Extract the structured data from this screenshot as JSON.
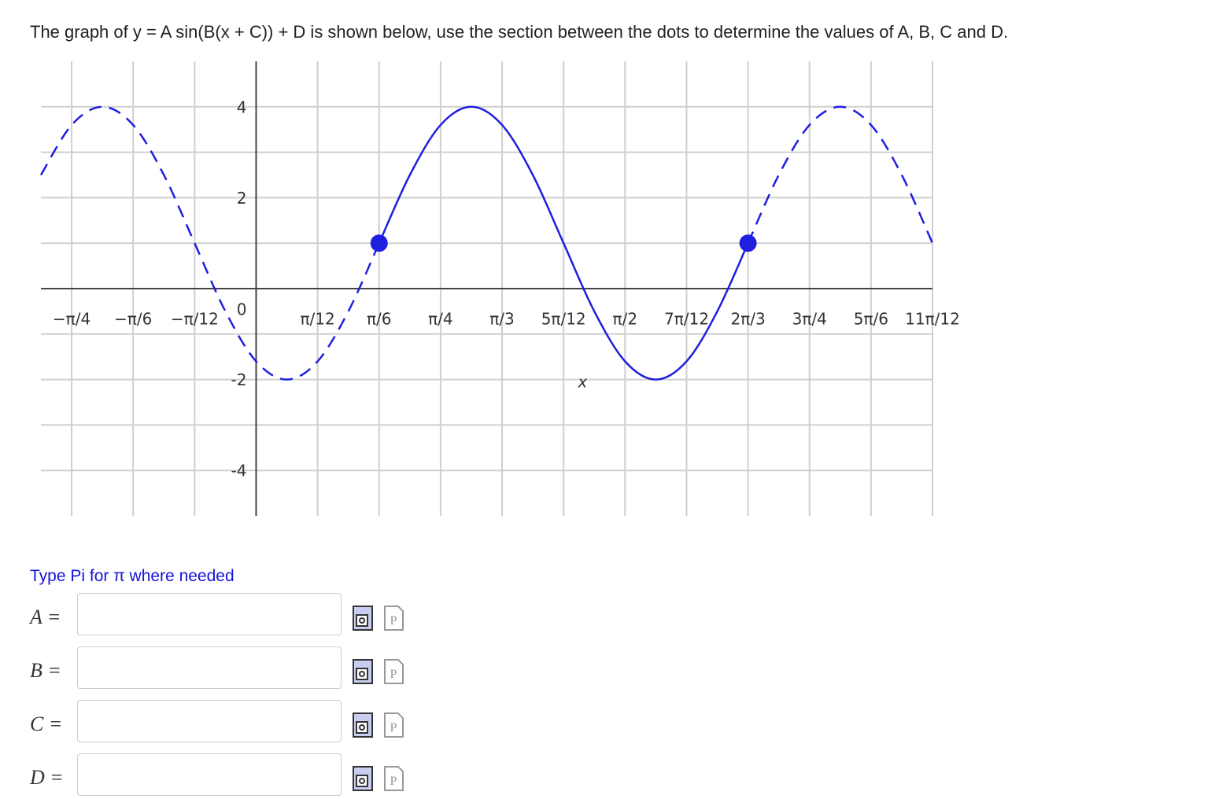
{
  "question": "The graph of y = A sin(B(x + C)) + D is shown below, use the section between the dots to determine the values of A, B, C and D.",
  "chart_data": {
    "type": "line",
    "xlabel": "x",
    "xlim": [
      -0.9163,
      2.8798
    ],
    "ylim": [
      -5,
      5
    ],
    "xticks": [
      {
        "value": -0.7854,
        "label": "−π/4"
      },
      {
        "value": -0.5236,
        "label": "−π/6"
      },
      {
        "value": -0.2618,
        "label": "−π/12"
      },
      {
        "value": 0.2618,
        "label": "π/12"
      },
      {
        "value": 0.5236,
        "label": "π/6"
      },
      {
        "value": 0.7854,
        "label": "π/4"
      },
      {
        "value": 1.0472,
        "label": "π/3"
      },
      {
        "value": 1.309,
        "label": "5π/12"
      },
      {
        "value": 1.5708,
        "label": "π/2"
      },
      {
        "value": 1.8326,
        "label": "7π/12"
      },
      {
        "value": 2.0944,
        "label": "2π/3"
      },
      {
        "value": 2.3562,
        "label": "3π/4"
      },
      {
        "value": 2.618,
        "label": "5π/6"
      },
      {
        "value": 2.8798,
        "label": "11π/12"
      }
    ],
    "yticks": [
      -4,
      -2,
      0,
      2,
      4
    ],
    "y_minor_ticks": [
      -3,
      -1,
      1,
      3
    ],
    "grid": true,
    "color": "#1f1fe0",
    "series": [
      {
        "dashed": true,
        "x": [
          -0.9163,
          -0.7854,
          -0.6545,
          -0.5236,
          -0.3927,
          -0.2618,
          -0.1309,
          0,
          0.1309,
          0.2618,
          0.3927,
          0.5236
        ],
        "values": [
          2.5,
          3.6,
          4,
          3.6,
          2.5,
          1,
          -0.5,
          -1.6,
          -2,
          -1.6,
          -0.5,
          1
        ]
      },
      {
        "dashed": false,
        "x": [
          0.5236,
          0.6545,
          0.7854,
          0.9163,
          1.0472,
          1.1781,
          1.309,
          1.4399,
          1.5708,
          1.7017,
          1.8326,
          1.9635,
          2.0944
        ],
        "values": [
          1,
          2.5,
          3.6,
          4,
          3.6,
          2.5,
          1,
          -0.5,
          -1.6,
          -2,
          -1.6,
          -0.5,
          1
        ]
      },
      {
        "dashed": true,
        "x": [
          2.0944,
          2.2253,
          2.3562,
          2.4871,
          2.618,
          2.7489,
          2.8798
        ],
        "values": [
          1,
          2.5,
          3.6,
          4,
          3.6,
          2.5,
          1
        ]
      }
    ],
    "points": {
      "x": [
        0.5236,
        2.0944
      ],
      "values": [
        1,
        1
      ]
    }
  },
  "instruction": "Type Pi for π where needed",
  "fields": [
    {
      "label": "A ="
    },
    {
      "label": "B ="
    },
    {
      "label": "C ="
    },
    {
      "label": "D ="
    }
  ]
}
